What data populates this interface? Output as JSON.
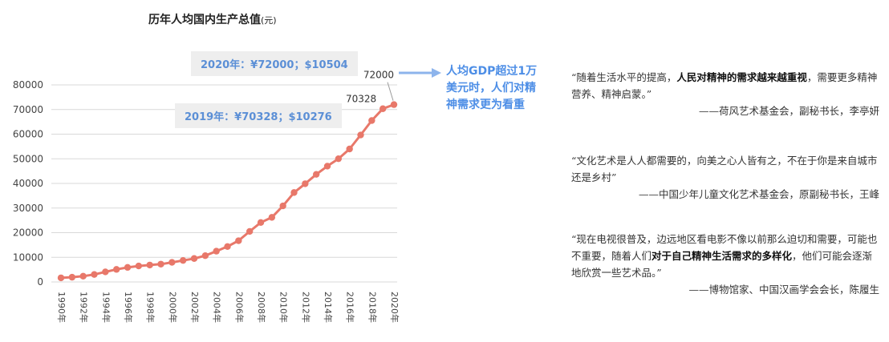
{
  "chart_data": {
    "type": "line",
    "title": "历年人均国内生产总值",
    "title_unit": "(元)",
    "ylim": [
      0,
      80000
    ],
    "yticks": [
      0,
      10000,
      20000,
      30000,
      40000,
      50000,
      60000,
      70000,
      80000
    ],
    "xticks": [
      "1990年",
      "1992年",
      "1994年",
      "1996年",
      "1998年",
      "2000年",
      "2002年",
      "2004年",
      "2006年",
      "2008年",
      "2010年",
      "2012年",
      "2014年",
      "2016年",
      "2018年",
      "2020年"
    ],
    "x": [
      1990,
      1991,
      1992,
      1993,
      1994,
      1995,
      1996,
      1997,
      1998,
      1999,
      2000,
      2001,
      2002,
      2003,
      2004,
      2005,
      2006,
      2007,
      2008,
      2009,
      2010,
      2011,
      2012,
      2013,
      2014,
      2015,
      2016,
      2017,
      2018,
      2019,
      2020
    ],
    "series": [
      {
        "values": [
          1660,
          1910,
          2330,
          3030,
          4080,
          5090,
          5900,
          6480,
          6860,
          7230,
          7940,
          8720,
          9510,
          10670,
          12490,
          14370,
          16740,
          20510,
          24120,
          26220,
          30880,
          36300,
          39870,
          43680,
          47010,
          50030,
          53980,
          59660,
          65530,
          70328,
          72000
        ]
      }
    ],
    "data_labels": [
      {
        "index": 29,
        "text": "70328"
      },
      {
        "index": 30,
        "text": "72000"
      }
    ],
    "grid": true,
    "line_color": "#e8786a"
  },
  "callouts": {
    "c2020": "2020年：¥72000；$10504",
    "c2019": "2019年：¥70328；$10276"
  },
  "emphasis": {
    "line1": "人均GDP超过1万",
    "line2": "美元时，人们对精",
    "line3": "神需求更为看重"
  },
  "quotes": {
    "q1": {
      "p1": "“随着生活水平的提高，",
      "b1": "人民对精神的需求越来越重视",
      "p2": "，需要更多精神营养、精神启蒙。”",
      "source": "——荷风艺术基金会，副秘书长，李亭妍"
    },
    "q2": {
      "p1": "“文化艺术是人人都需要的，向美之心人皆有之，不在于你是来自城市还是乡村”",
      "source": "——中国少年儿童文化艺术基金会，原副秘书长，王峰"
    },
    "q3": {
      "p1": "“现在电视很普及，边远地区看电影不像以前那么迫切和需要，可能也不重要，随着人们",
      "b1": "对于自己精神生活需求的多样化",
      "p2": "，他们可能会逐渐地欣赏一些艺术品。”",
      "source": "——博物馆家、中国汉画学会会长，陈履生"
    }
  },
  "colors": {
    "callout_text": "#5b8fd6",
    "callout_bg": "#eeeeee",
    "emphasis_text": "#4d8ee6",
    "arrow": "#8db4ec"
  }
}
